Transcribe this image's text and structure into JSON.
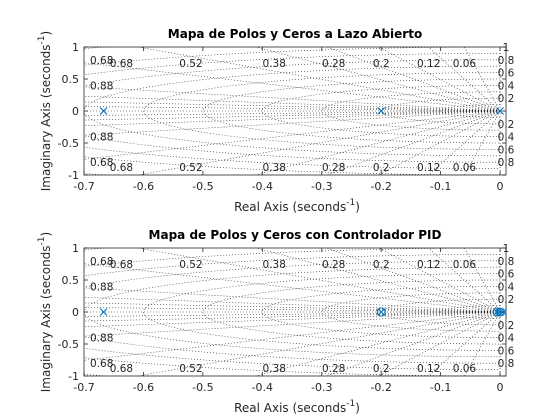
{
  "chart_data": [
    {
      "type": "scatter",
      "subtype": "pole-zero map",
      "title": "Mapa de Polos y Ceros a Lazo Abierto",
      "xlabel": "Real Axis (seconds",
      "ylabel": "Imaginary Axis (seconds",
      "label_superscript": "-1",
      "xlim": [
        -0.7,
        0.01
      ],
      "ylim": [
        -1,
        1
      ],
      "xticks": [
        -0.7,
        -0.6,
        -0.5,
        -0.4,
        -0.3,
        -0.2,
        -0.1,
        0
      ],
      "yticks": [
        -1,
        -0.5,
        0,
        0.5,
        1
      ],
      "grid": "zeta-wn",
      "damping_labels": [
        "0.68",
        "0.52",
        "0.38",
        "0.28",
        "0.2",
        "0.12",
        "0.06"
      ],
      "damping_values": [
        0.68,
        0.52,
        0.38,
        0.28,
        0.2,
        0.12,
        0.06
      ],
      "frequency_labels": [
        "1",
        "0.8",
        "0.6",
        "0.4",
        "0.2"
      ],
      "left_labels": [
        "0.68",
        "0.88",
        "0.88",
        "0.68"
      ],
      "poles": [
        [
          -0.667,
          0
        ],
        [
          -0.2,
          0
        ],
        [
          0,
          0
        ]
      ],
      "zeros": [],
      "color": "#0072bd"
    },
    {
      "type": "scatter",
      "subtype": "pole-zero map",
      "title": "Mapa de Polos y Ceros con Controlador PID",
      "xlabel": "Real Axis (seconds",
      "ylabel": "Imaginary Axis (seconds",
      "label_superscript": "-1",
      "xlim": [
        -0.7,
        0.01
      ],
      "ylim": [
        -1,
        1
      ],
      "xticks": [
        -0.7,
        -0.6,
        -0.5,
        -0.4,
        -0.3,
        -0.2,
        -0.1,
        0
      ],
      "yticks": [
        -1,
        -0.5,
        0,
        0.5,
        1
      ],
      "grid": "zeta-wn",
      "damping_labels": [
        "0.68",
        "0.52",
        "0.38",
        "0.28",
        "0.2",
        "0.12",
        "0.06"
      ],
      "damping_values": [
        0.68,
        0.52,
        0.38,
        0.28,
        0.2,
        0.12,
        0.06
      ],
      "frequency_labels": [
        "1",
        "0.8",
        "0.6",
        "0.4",
        "0.2"
      ],
      "left_labels": [
        "0.68",
        "0.88",
        "0.88",
        "0.68"
      ],
      "poles": [
        [
          -0.667,
          0
        ],
        [
          -0.2,
          0
        ],
        [
          -0.005,
          0
        ],
        [
          0,
          0
        ],
        [
          0.005,
          0
        ]
      ],
      "zeros": [
        [
          -0.2,
          0
        ],
        [
          -0.005,
          0
        ],
        [
          0,
          0
        ]
      ],
      "color": "#0072bd"
    }
  ]
}
